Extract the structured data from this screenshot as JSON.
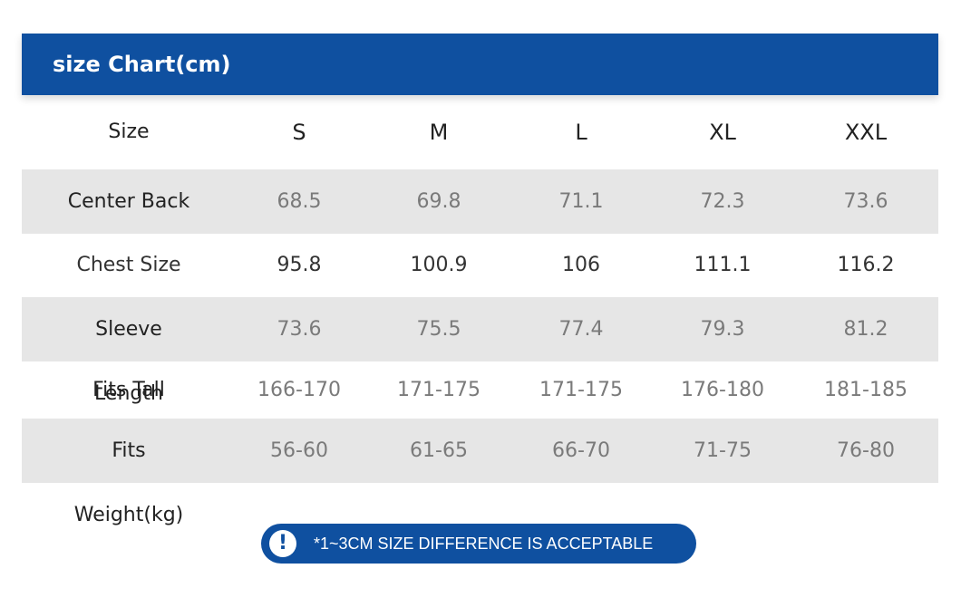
{
  "header": {
    "title": "size Chart(cm)"
  },
  "table": {
    "header": [
      "Size",
      "S",
      "M",
      "L",
      "XL",
      "XXL"
    ],
    "rows": [
      [
        "Center Back",
        "68.5",
        "69.8",
        "71.1",
        "72.3",
        "73.6"
      ],
      [
        "Chest Size",
        "95.8",
        "100.9",
        "106",
        "111.1",
        "116.2"
      ],
      [
        "Sleeve Length",
        "73.6",
        "75.5",
        "77.4",
        "79.3",
        "81.2"
      ],
      [
        "Fits Tall",
        "166-170",
        "171-175",
        "171-175",
        "176-180",
        "181-185"
      ],
      [
        "Fits Weight(kg)",
        "56-60",
        "61-65",
        "66-70",
        "71-75",
        "76-80"
      ]
    ]
  },
  "note": "*1~3CM SIZE DIFFERENCE IS ACCEPTABLE"
}
